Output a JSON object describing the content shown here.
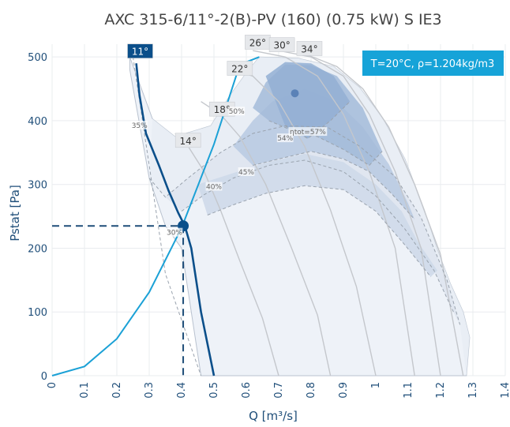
{
  "chart_data": {
    "type": "line",
    "title": "AXC 315-6/11°-2(B)-PV (160) (0.75 kW) S IE3",
    "xlabel": "Q [m³/s]",
    "ylabel": "Pstat [Pa]",
    "xlim": [
      0,
      1.4
    ],
    "ylim": [
      0,
      520
    ],
    "x_ticks": [
      "0",
      "0.1",
      "0.2",
      "0.3",
      "0.4",
      "0.5",
      "0.6",
      "0.7",
      "0.8",
      "0.9",
      "1",
      "1.1",
      "1.2",
      "1.3",
      "1.4"
    ],
    "y_ticks": [
      "0",
      "100",
      "200",
      "300",
      "400",
      "500"
    ],
    "grid": true,
    "info_box": "T=20°C, ρ=1.204kg/m3",
    "series": [
      {
        "name": "system curve",
        "color": "#1ba1d6",
        "x": [
          0,
          0.1,
          0.2,
          0.3,
          0.4,
          0.5,
          0.58,
          0.64
        ],
        "y": [
          0,
          14.5,
          58,
          131,
          232,
          363,
          488,
          500
        ]
      },
      {
        "name": "fan curve 11°",
        "color": "#0b4f8a",
        "x": [
          0.26,
          0.27,
          0.29,
          0.33,
          0.36,
          0.39,
          0.41,
          0.43,
          0.46,
          0.5
        ],
        "y": [
          490,
          440,
          380,
          330,
          290,
          255,
          235,
          200,
          100,
          0
        ]
      }
    ],
    "operating_point": {
      "q": 0.405,
      "p": 235,
      "color": "#0b4f8a"
    },
    "best_efficiency_point": {
      "q": 0.75,
      "p": 443,
      "color": "#5b82b7"
    },
    "blade_angles": [
      {
        "label": "1",
        "q": 0.255,
        "p": 508
      },
      {
        "label": "11°",
        "q": 0.272,
        "p": 508,
        "selected": true
      },
      {
        "label": "14°",
        "q": 0.42,
        "p": 368
      },
      {
        "label": "18°",
        "q": 0.525,
        "p": 417
      },
      {
        "label": "22°",
        "q": 0.58,
        "p": 481
      },
      {
        "label": "26°",
        "q": 0.635,
        "p": 522
      },
      {
        "label": "30°",
        "q": 0.71,
        "p": 518
      },
      {
        "label": "34°",
        "q": 0.795,
        "p": 512
      }
    ],
    "efficiency_labels": [
      {
        "label": "35%",
        "q": 0.27,
        "p": 390
      },
      {
        "label": "50%",
        "q": 0.57,
        "p": 412
      },
      {
        "label": "54%",
        "q": 0.72,
        "p": 370
      },
      {
        "label": "ηtot=57%",
        "q": 0.79,
        "p": 380
      },
      {
        "label": "45%",
        "q": 0.6,
        "p": 317
      },
      {
        "label": "40%",
        "q": 0.5,
        "p": 294
      },
      {
        "label": "30%",
        "q": 0.378,
        "p": 222
      }
    ],
    "envelope_outer": [
      [
        0.24,
        500
      ],
      [
        0.31,
        403
      ],
      [
        0.38,
        375
      ],
      [
        0.49,
        392
      ],
      [
        0.55,
        440
      ],
      [
        0.6,
        475
      ],
      [
        0.64,
        500
      ],
      [
        0.76,
        498
      ],
      [
        0.87,
        485
      ],
      [
        0.95,
        452
      ],
      [
        1.02,
        405
      ],
      [
        1.09,
        340
      ],
      [
        1.15,
        260
      ],
      [
        1.19,
        198
      ],
      [
        1.23,
        145
      ],
      [
        1.27,
        100
      ],
      [
        1.29,
        60
      ],
      [
        1.28,
        0
      ],
      [
        0.46,
        0
      ],
      [
        0.4,
        200
      ],
      [
        0.35,
        235
      ],
      [
        0.3,
        310
      ],
      [
        0.24,
        480
      ]
    ],
    "efficiency_zones": [
      {
        "name": "35%",
        "fill": "#e8edf5",
        "points": [
          [
            0.31,
            403
          ],
          [
            0.38,
            375
          ],
          [
            0.49,
            392
          ],
          [
            0.55,
            440
          ],
          [
            0.6,
            475
          ],
          [
            0.64,
            500
          ],
          [
            0.76,
            498
          ],
          [
            0.87,
            485
          ],
          [
            0.95,
            452
          ],
          [
            1.02,
            405
          ],
          [
            1.09,
            340
          ],
          [
            1.15,
            260
          ],
          [
            1.19,
            198
          ],
          [
            1.23,
            145
          ],
          [
            1.27,
            100
          ],
          [
            1.29,
            60
          ],
          [
            1.28,
            0
          ],
          [
            1.26,
            80
          ],
          [
            1.22,
            150
          ],
          [
            1.14,
            248
          ],
          [
            1.06,
            312
          ],
          [
            0.95,
            360
          ],
          [
            0.85,
            390
          ],
          [
            0.72,
            392
          ],
          [
            0.62,
            380
          ],
          [
            0.52,
            350
          ],
          [
            0.42,
            310
          ],
          [
            0.35,
            280
          ],
          [
            0.3,
            310
          ]
        ]
      },
      {
        "name": "40%",
        "fill": "#dde4ef",
        "points": [
          [
            0.35,
            280
          ],
          [
            0.42,
            310
          ],
          [
            0.52,
            350
          ],
          [
            0.62,
            380
          ],
          [
            0.72,
            392
          ],
          [
            0.85,
            390
          ],
          [
            0.95,
            360
          ],
          [
            1.06,
            312
          ],
          [
            1.14,
            248
          ],
          [
            1.22,
            150
          ],
          [
            1.26,
            80
          ],
          [
            1.24,
            100
          ],
          [
            1.18,
            165
          ],
          [
            1.09,
            230
          ],
          [
            1.0,
            282
          ],
          [
            0.9,
            320
          ],
          [
            0.78,
            338
          ],
          [
            0.67,
            330
          ],
          [
            0.56,
            310
          ],
          [
            0.47,
            284
          ],
          [
            0.4,
            258
          ]
        ]
      },
      {
        "name": "45%",
        "fill": "#ccd8e9",
        "points": [
          [
            0.45,
            300
          ],
          [
            0.56,
            318
          ],
          [
            0.66,
            334
          ],
          [
            0.78,
            348
          ],
          [
            0.9,
            335
          ],
          [
            1.0,
            300
          ],
          [
            1.08,
            258
          ],
          [
            1.13,
            210
          ],
          [
            1.19,
            165
          ],
          [
            1.17,
            155
          ],
          [
            1.09,
            205
          ],
          [
            1.0,
            258
          ],
          [
            0.9,
            292
          ],
          [
            0.78,
            298
          ],
          [
            0.66,
            286
          ],
          [
            0.56,
            268
          ],
          [
            0.48,
            252
          ]
        ]
      },
      {
        "name": "50%",
        "fill": "#b7c9e2",
        "points": [
          [
            0.56,
            360
          ],
          [
            0.62,
            400
          ],
          [
            0.68,
            430
          ],
          [
            0.78,
            450
          ],
          [
            0.88,
            430
          ],
          [
            0.96,
            390
          ],
          [
            1.04,
            332
          ],
          [
            1.1,
            270
          ],
          [
            1.12,
            245
          ],
          [
            1.05,
            285
          ],
          [
            0.98,
            320
          ],
          [
            0.9,
            340
          ],
          [
            0.8,
            352
          ],
          [
            0.7,
            340
          ],
          [
            0.62,
            330
          ]
        ]
      },
      {
        "name": "54%",
        "fill": "#a3bbd9",
        "points": [
          [
            0.62,
            420
          ],
          [
            0.66,
            460
          ],
          [
            0.72,
            488
          ],
          [
            0.8,
            487
          ],
          [
            0.88,
            470
          ],
          [
            0.96,
            420
          ],
          [
            1.02,
            352
          ],
          [
            0.98,
            330
          ],
          [
            0.9,
            355
          ],
          [
            0.82,
            375
          ],
          [
            0.74,
            385
          ],
          [
            0.67,
            400
          ]
        ]
      },
      {
        "name": "57%",
        "fill": "#93afd3",
        "points": [
          [
            0.66,
            470
          ],
          [
            0.72,
            492
          ],
          [
            0.8,
            490
          ],
          [
            0.87,
            470
          ],
          [
            0.92,
            430
          ],
          [
            0.86,
            400
          ],
          [
            0.79,
            372
          ],
          [
            0.72,
            392
          ]
        ]
      }
    ],
    "efficiency_contour_lines": [
      [
        [
          0.3,
          310
        ],
        [
          0.35,
          280
        ],
        [
          0.42,
          310
        ],
        [
          0.52,
          350
        ],
        [
          0.62,
          380
        ],
        [
          0.72,
          392
        ],
        [
          0.85,
          390
        ],
        [
          0.95,
          360
        ],
        [
          1.06,
          312
        ],
        [
          1.14,
          248
        ],
        [
          1.22,
          150
        ],
        [
          1.26,
          80
        ]
      ],
      [
        [
          0.4,
          258
        ],
        [
          0.47,
          284
        ],
        [
          0.56,
          310
        ],
        [
          0.67,
          330
        ],
        [
          0.78,
          338
        ],
        [
          0.9,
          320
        ],
        [
          1.0,
          282
        ],
        [
          1.09,
          230
        ],
        [
          1.18,
          165
        ],
        [
          1.24,
          100
        ]
      ],
      [
        [
          0.48,
          252
        ],
        [
          0.56,
          268
        ],
        [
          0.66,
          286
        ],
        [
          0.78,
          298
        ],
        [
          0.9,
          292
        ],
        [
          1.0,
          258
        ],
        [
          1.09,
          205
        ],
        [
          1.17,
          155
        ]
      ],
      [
        [
          0.62,
          330
        ],
        [
          0.7,
          340
        ],
        [
          0.8,
          352
        ],
        [
          0.9,
          340
        ],
        [
          0.98,
          320
        ],
        [
          1.05,
          285
        ],
        [
          1.12,
          245
        ]
      ],
      [
        [
          0.67,
          400
        ],
        [
          0.74,
          385
        ],
        [
          0.82,
          375
        ],
        [
          0.9,
          355
        ],
        [
          0.98,
          330
        ],
        [
          1.02,
          352
        ]
      ],
      [
        [
          0.72,
          392
        ],
        [
          0.79,
          372
        ],
        [
          0.86,
          400
        ],
        [
          0.92,
          430
        ]
      ],
      [
        [
          0.25,
          500
        ],
        [
          0.35,
          160
        ],
        [
          0.46,
          0
        ]
      ]
    ],
    "angle_curves": [
      {
        "label": "14°",
        "points": [
          [
            0.38,
            380
          ],
          [
            0.42,
            360
          ],
          [
            0.47,
            320
          ],
          [
            0.52,
            260
          ],
          [
            0.58,
            180
          ],
          [
            0.65,
            90
          ],
          [
            0.7,
            0
          ]
        ]
      },
      {
        "label": "18°",
        "points": [
          [
            0.46,
            430
          ],
          [
            0.52,
            410
          ],
          [
            0.58,
            375
          ],
          [
            0.66,
            300
          ],
          [
            0.74,
            200
          ],
          [
            0.82,
            95
          ],
          [
            0.86,
            0
          ]
        ]
      },
      {
        "label": "22°",
        "points": [
          [
            0.56,
            480
          ],
          [
            0.62,
            470
          ],
          [
            0.7,
            430
          ],
          [
            0.78,
            360
          ],
          [
            0.86,
            260
          ],
          [
            0.94,
            140
          ],
          [
            1.0,
            0
          ]
        ]
      },
      {
        "label": "26°",
        "points": [
          [
            0.62,
            510
          ],
          [
            0.72,
            500
          ],
          [
            0.82,
            470
          ],
          [
            0.9,
            410
          ],
          [
            0.98,
            320
          ],
          [
            1.06,
            200
          ],
          [
            1.12,
            0
          ]
        ]
      },
      {
        "label": "30°",
        "points": [
          [
            0.7,
            510
          ],
          [
            0.8,
            500
          ],
          [
            0.9,
            470
          ],
          [
            0.98,
            410
          ],
          [
            1.06,
            320
          ],
          [
            1.14,
            200
          ],
          [
            1.2,
            0
          ]
        ]
      },
      {
        "label": "34°",
        "points": [
          [
            0.78,
            505
          ],
          [
            0.88,
            485
          ],
          [
            0.96,
            450
          ],
          [
            1.04,
            390
          ],
          [
            1.12,
            300
          ],
          [
            1.2,
            190
          ],
          [
            1.27,
            0
          ]
        ]
      }
    ],
    "guides": {
      "q": 0.405,
      "p": 235,
      "color": "#1f4e79"
    }
  }
}
